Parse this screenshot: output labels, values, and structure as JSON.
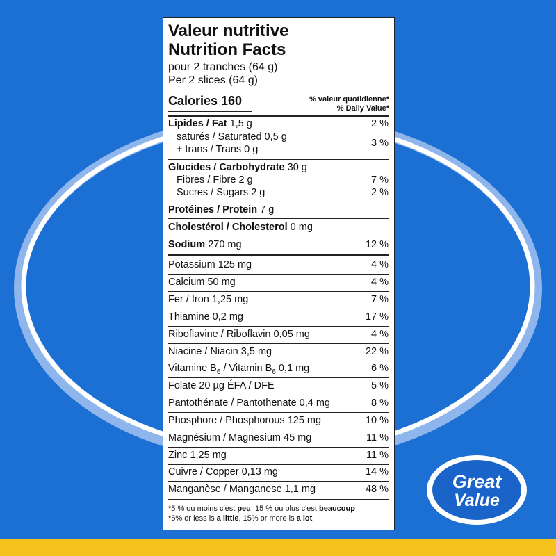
{
  "header": {
    "title_fr": "Valeur nutritive",
    "title_en": "Nutrition Facts",
    "serving_fr": "pour 2 tranches (64 g)",
    "serving_en": "Per 2 slices (64 g)"
  },
  "calories": {
    "label": "Calories 160",
    "dv_fr": "% valeur quotidienne*",
    "dv_en": "% Daily Value*"
  },
  "rows": [
    {
      "name": "Lipides / Fat",
      "amount": "1,5 g",
      "dv": "2 %",
      "bold": true
    },
    {
      "name": "saturés / Saturated",
      "amount": "0,5 g",
      "dv": "3 %",
      "indent": true
    },
    {
      "name": "+ trans / Trans",
      "amount": "0 g",
      "indent": true
    },
    {
      "name": "Glucides / Carbohydrate",
      "amount": "30 g",
      "bold": true
    },
    {
      "name": "Fibres / Fibre",
      "amount": "2 g",
      "dv": "7 %",
      "indent": true
    },
    {
      "name": "Sucres / Sugars",
      "amount": "2 g",
      "dv": "2 %",
      "indent": true
    },
    {
      "name": "Protéines / Protein",
      "amount": "7 g",
      "bold": true
    },
    {
      "name": "Cholestérol / Cholesterol",
      "amount": "0 mg",
      "bold": true
    },
    {
      "name": "Sodium",
      "amount": "270 mg",
      "dv": "12 %",
      "bold": true
    },
    {
      "name": "Potassium",
      "amount": "125 mg",
      "dv": "4 %"
    },
    {
      "name": "Calcium",
      "amount": "50 mg",
      "dv": "4 %"
    },
    {
      "name": "Fer / Iron",
      "amount": "1,25 mg",
      "dv": "7 %"
    },
    {
      "name": "Thiamine",
      "amount": "0,2 mg",
      "dv": "17 %"
    },
    {
      "name": "Riboflavine / Riboflavin",
      "amount": "0,05 mg",
      "dv": "4 %"
    },
    {
      "name": "Niacine / Niacin",
      "amount": "3,5 mg",
      "dv": "22 %"
    },
    {
      "name_parts": [
        "Vitamine B",
        "6",
        " / Vitamin B",
        "6"
      ],
      "amount": "0,1 mg",
      "dv": "6 %"
    },
    {
      "name": "Folate",
      "amount": "20 µg ÉFA / DFE",
      "dv": "5 %"
    },
    {
      "name": "Pantothénate / Pantothenate",
      "amount": "0,4 mg",
      "dv": "8 %"
    },
    {
      "name": "Phosphore / Phosphorous",
      "amount": "125 mg",
      "dv": "10 %"
    },
    {
      "name": "Magnésium / Magnesium",
      "amount": "45 mg",
      "dv": "11 %"
    },
    {
      "name": "Zinc",
      "amount": "1,25 mg",
      "dv": "11 %"
    },
    {
      "name": "Cuivre / Copper",
      "amount": "0,13 mg",
      "dv": "14 %"
    },
    {
      "name": "Manganèse / Manganese",
      "amount": "1,1 mg",
      "dv": "48 %"
    }
  ],
  "footnote": {
    "fr": [
      "*5 % ou moins c'est ",
      "peu",
      ", 15 % ou plus c'est ",
      "beaucoup"
    ],
    "en": [
      "*5% or less is ",
      "a little",
      ", 15% or more is ",
      "a lot"
    ]
  },
  "logo": {
    "line1": "Great",
    "line2": "Value"
  }
}
